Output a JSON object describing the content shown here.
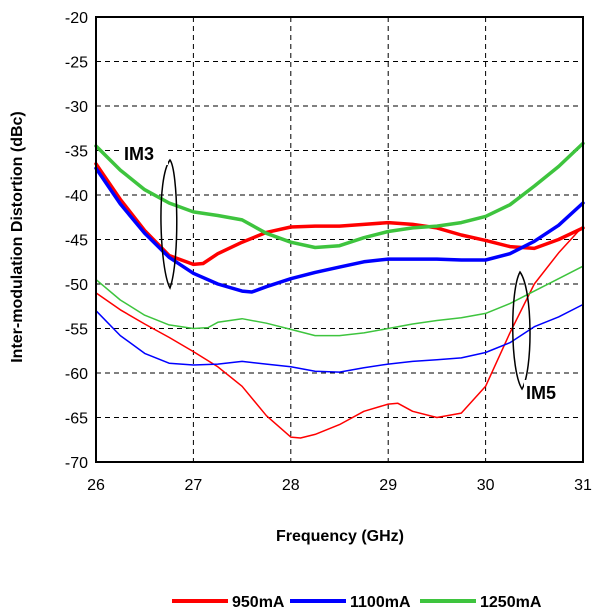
{
  "chart_data": {
    "type": "line",
    "xlabel": "Frequency (GHz)",
    "ylabel": "Inter-modulation Distortion (dBc)",
    "xlim": [
      26,
      31
    ],
    "ylim": [
      -70,
      -20
    ],
    "x_ticks": [
      26,
      27,
      28,
      29,
      30,
      31
    ],
    "y_ticks": [
      -20,
      -25,
      -30,
      -35,
      -40,
      -45,
      -50,
      -55,
      -60,
      -65,
      -70
    ],
    "grid": true,
    "legend_position": "bottom",
    "annotations": [
      "IM3",
      "IM5"
    ],
    "series": [
      {
        "name": "950mA",
        "group": "IM3",
        "color": "#ff0000",
        "width": "thick",
        "x": [
          26.0,
          26.25,
          26.5,
          26.75,
          27.0,
          27.1,
          27.25,
          27.5,
          27.75,
          28.0,
          28.25,
          28.5,
          28.75,
          29.0,
          29.25,
          29.5,
          29.75,
          30.0,
          30.25,
          30.5,
          30.75,
          31.0
        ],
        "y": [
          -36.5,
          -40.5,
          -44.0,
          -46.8,
          -47.8,
          -47.7,
          -46.6,
          -45.3,
          -44.2,
          -43.6,
          -43.5,
          -43.5,
          -43.3,
          -43.1,
          -43.3,
          -43.7,
          -44.5,
          -45.1,
          -45.8,
          -46.0,
          -45.0,
          -43.7
        ]
      },
      {
        "name": "1100mA",
        "group": "IM3",
        "color": "#0000ff",
        "width": "thick",
        "x": [
          26.0,
          26.25,
          26.5,
          26.75,
          27.0,
          27.25,
          27.5,
          27.6,
          27.75,
          28.0,
          28.25,
          28.5,
          28.75,
          29.0,
          29.25,
          29.5,
          29.75,
          30.0,
          30.25,
          30.5,
          30.75,
          31.0
        ],
        "y": [
          -37.0,
          -41.0,
          -44.3,
          -47.0,
          -48.8,
          -50.0,
          -50.8,
          -50.9,
          -50.3,
          -49.4,
          -48.7,
          -48.1,
          -47.5,
          -47.2,
          -47.2,
          -47.2,
          -47.3,
          -47.3,
          -46.6,
          -45.2,
          -43.4,
          -40.9
        ]
      },
      {
        "name": "1250mA",
        "group": "IM3",
        "color": "#3ec43e",
        "width": "thick",
        "x": [
          26.0,
          26.25,
          26.5,
          26.75,
          27.0,
          27.25,
          27.5,
          27.75,
          28.0,
          28.25,
          28.5,
          28.75,
          29.0,
          29.25,
          29.5,
          29.75,
          30.0,
          30.25,
          30.5,
          30.75,
          31.0
        ],
        "y": [
          -34.5,
          -37.2,
          -39.4,
          -40.9,
          -41.9,
          -42.3,
          -42.8,
          -44.3,
          -45.3,
          -45.9,
          -45.7,
          -44.8,
          -44.1,
          -43.7,
          -43.5,
          -43.1,
          -42.4,
          -41.1,
          -39.0,
          -36.8,
          -34.2
        ]
      },
      {
        "name": "950mA",
        "group": "IM5",
        "color": "#ff0000",
        "width": "thin",
        "x": [
          26.0,
          26.25,
          26.5,
          26.75,
          27.0,
          27.25,
          27.5,
          27.75,
          28.0,
          28.1,
          28.25,
          28.5,
          28.75,
          29.0,
          29.1,
          29.25,
          29.5,
          29.75,
          30.0,
          30.25,
          30.5,
          30.75,
          31.0
        ],
        "y": [
          -51.0,
          -52.9,
          -54.5,
          -56.0,
          -57.6,
          -59.3,
          -61.5,
          -64.8,
          -67.2,
          -67.3,
          -66.9,
          -65.8,
          -64.3,
          -63.5,
          -63.4,
          -64.3,
          -65.0,
          -64.5,
          -61.5,
          -55.5,
          -50.0,
          -46.5,
          -43.5
        ]
      },
      {
        "name": "1100mA",
        "group": "IM5",
        "color": "#0000ff",
        "width": "thin",
        "x": [
          26.0,
          26.25,
          26.5,
          26.75,
          27.0,
          27.25,
          27.5,
          27.75,
          28.0,
          28.25,
          28.5,
          28.75,
          29.0,
          29.25,
          29.5,
          29.75,
          30.0,
          30.25,
          30.5,
          30.75,
          31.0
        ],
        "y": [
          -53.0,
          -55.8,
          -57.8,
          -58.9,
          -59.1,
          -59.0,
          -58.7,
          -59.0,
          -59.3,
          -59.8,
          -59.9,
          -59.4,
          -59.0,
          -58.7,
          -58.5,
          -58.3,
          -57.7,
          -56.6,
          -54.8,
          -53.7,
          -52.3
        ]
      },
      {
        "name": "1250mA",
        "group": "IM5",
        "color": "#3ec43e",
        "width": "thin",
        "x": [
          26.0,
          26.25,
          26.5,
          26.75,
          27.0,
          27.15,
          27.25,
          27.5,
          27.75,
          28.0,
          28.25,
          28.5,
          28.75,
          29.0,
          29.25,
          29.5,
          29.75,
          30.0,
          30.25,
          30.5,
          30.75,
          31.0
        ],
        "y": [
          -49.5,
          -51.8,
          -53.5,
          -54.6,
          -55.0,
          -54.9,
          -54.3,
          -53.9,
          -54.4,
          -55.1,
          -55.8,
          -55.8,
          -55.5,
          -55.0,
          -54.5,
          -54.1,
          -53.8,
          -53.3,
          -52.2,
          -50.8,
          -49.4,
          -48.0
        ]
      }
    ],
    "legend": [
      {
        "label": "950mA",
        "color": "#ff0000"
      },
      {
        "label": "1100mA",
        "color": "#0000ff"
      },
      {
        "label": "1250mA",
        "color": "#3ec43e"
      }
    ]
  }
}
